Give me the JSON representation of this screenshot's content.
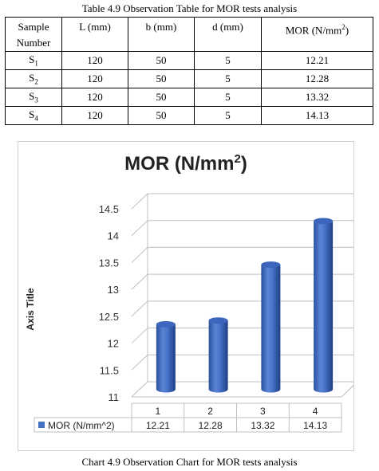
{
  "table": {
    "caption": "Table 4.9 Observation Table for MOR tests analysis",
    "headers": [
      "Sample Number",
      "L (mm)",
      "b (mm)",
      "d (mm)",
      "MOR (N/mm2)"
    ],
    "header_parts": {
      "sample_line1": "Sample",
      "sample_line2": "Number",
      "mor_prefix": "MOR (N/mm",
      "mor_sup": "2",
      "mor_suffix": ")"
    },
    "rows": [
      {
        "sample": "S",
        "sub": "1",
        "L": "120",
        "b": "50",
        "d": "5",
        "mor": "12.21"
      },
      {
        "sample": "S",
        "sub": "2",
        "L": "120",
        "b": "50",
        "d": "5",
        "mor": "12.28"
      },
      {
        "sample": "S",
        "sub": "3",
        "L": "120",
        "b": "50",
        "d": "5",
        "mor": "13.32"
      },
      {
        "sample": "S",
        "sub": "4",
        "L": "120",
        "b": "50",
        "d": "5",
        "mor": "14.13"
      }
    ]
  },
  "chart_data": {
    "type": "bar",
    "title": "MOR (N/mm2)",
    "title_parts": {
      "main": "MOR (N/mm",
      "sup": "2",
      "end": ")"
    },
    "ylabel": "Axis Title",
    "xlabel": "",
    "categories": [
      "1",
      "2",
      "3",
      "4"
    ],
    "series": [
      {
        "name": "MOR (N/mm^2)",
        "values": [
          12.21,
          12.28,
          13.32,
          14.13
        ],
        "color": "#4472c4"
      }
    ],
    "data_table_values": [
      "12.21",
      "12.28",
      "13.32",
      "14.13"
    ],
    "ylim": [
      11,
      14.5
    ],
    "yticks": [
      "11",
      "11.5",
      "12",
      "12.5",
      "13",
      "13.5",
      "14",
      "14.5"
    ],
    "grid": true,
    "style": "3d-cylinder",
    "legend": "data-table"
  },
  "chart_caption": "Chart 4.9 Observation Chart for MOR tests analysis"
}
